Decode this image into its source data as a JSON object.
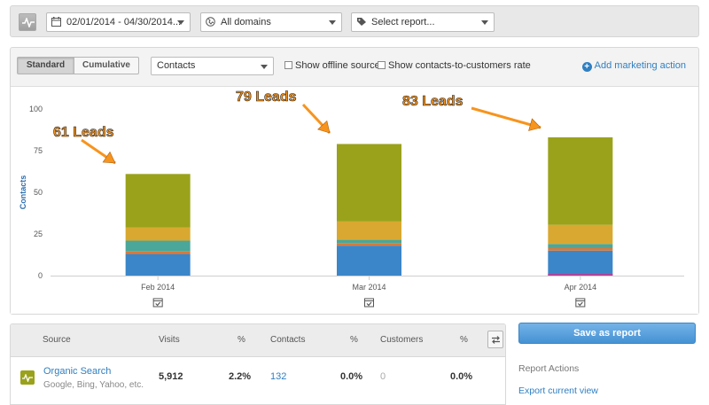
{
  "filters": {
    "date_range": "02/01/2014 - 04/30/2014...",
    "domains": "All domains",
    "report": "Select report..."
  },
  "chart_controls": {
    "standard_label": "Standard",
    "cumulative_label": "Cumulative",
    "metric": "Contacts",
    "offline_label": "Show offline sources",
    "rate_label": "Show contacts-to-customers rate",
    "add_action_label": "Add marketing action"
  },
  "colors": {
    "olive": "#9aa21b",
    "amber": "#d9a830",
    "teal": "#4aa79a",
    "orange": "#d9793a",
    "blue": "#3b86c8",
    "magenta": "#b0429a",
    "annotation_arrow": "#f7941d",
    "annotation_text": "#f7941d",
    "link": "#2f7fc1"
  },
  "chart_data": {
    "type": "bar",
    "stacked": true,
    "categories": [
      "Feb 2014",
      "Mar 2014",
      "Apr 2014"
    ],
    "ylabel": "Contacts",
    "ylim": [
      0,
      100
    ],
    "yticks": [
      0,
      25,
      50,
      75,
      100
    ],
    "grid": false,
    "series": [
      {
        "color": "#3b86c8",
        "values": [
          13,
          18,
          15
        ]
      },
      {
        "color": "#d9793a",
        "values": [
          1.5,
          1.5,
          1.5
        ]
      },
      {
        "color": "#4aa79a",
        "values": [
          6.5,
          2,
          2.5
        ]
      },
      {
        "color": "#d9a830",
        "values": [
          8,
          11,
          11.5
        ]
      },
      {
        "color": "#9aa21b",
        "values": [
          32,
          46.5,
          52.5
        ]
      }
    ],
    "annotations": [
      {
        "text": "61 Leads",
        "category": "Feb 2014",
        "value": 61
      },
      {
        "text": "79 Leads",
        "category": "Mar 2014",
        "value": 79
      },
      {
        "text": "83 Leads",
        "category": "Apr 2014",
        "value": 83
      }
    ]
  },
  "table": {
    "headers": [
      "Source",
      "Visits",
      "%",
      "Contacts",
      "%",
      "Customers",
      "%"
    ],
    "rows": [
      {
        "source": "Organic Search",
        "sub": "Google, Bing, Yahoo, etc.",
        "visits": "5,912",
        "visits_pct": "2.2%",
        "contacts": "132",
        "contacts_pct": "0.0%",
        "customers": "0",
        "customers_pct": "0.0%"
      }
    ]
  },
  "actions": {
    "save_label": "Save as report",
    "title": "Report Actions",
    "export_label": "Export current view"
  }
}
